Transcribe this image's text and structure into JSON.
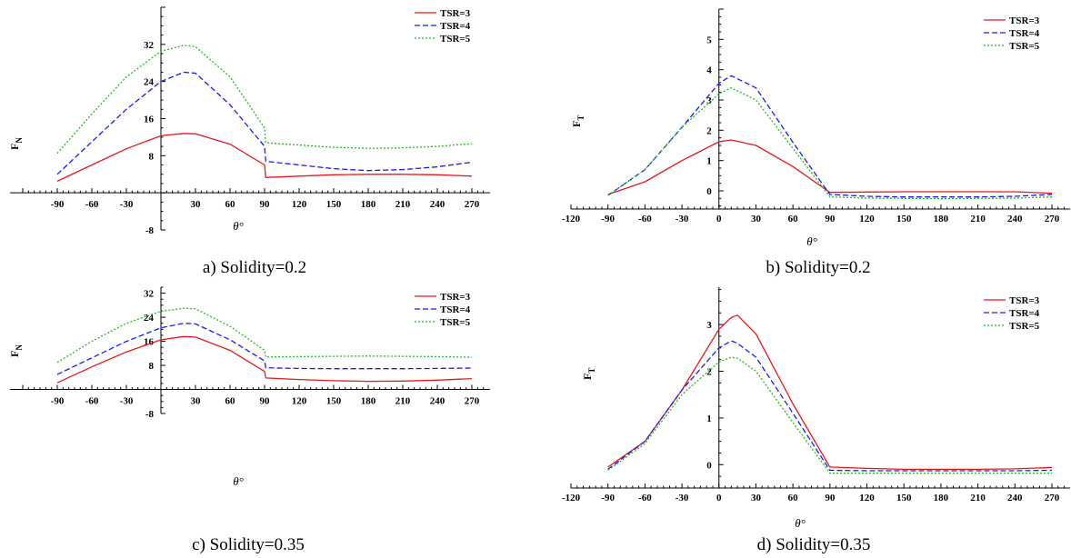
{
  "chart_data": [
    {
      "type": "line",
      "caption": "a) Solidity=0.2",
      "xlabel": "θ°",
      "ylabel": "F",
      "ylabel_sub": "N",
      "xlim": [
        -90,
        270
      ],
      "ylim": [
        -8,
        40
      ],
      "xticks": [
        "-90",
        "-60",
        "-30",
        "30",
        "60",
        "90",
        "120",
        "150",
        "180",
        "210",
        "240",
        "270"
      ],
      "yticks": [
        "-8",
        "8",
        "16",
        "24",
        "32"
      ],
      "legend_position": "top-right",
      "grid": false,
      "series": [
        {
          "name": "TSR=3",
          "color": "#e31a1c",
          "dash": "solid",
          "x": [
            -90,
            -60,
            -30,
            0,
            20,
            30,
            60,
            90,
            91,
            120,
            150,
            180,
            210,
            240,
            270
          ],
          "y": [
            2.5,
            6,
            9.5,
            12.3,
            12.8,
            12.7,
            10.5,
            6,
            3.3,
            3.6,
            3.9,
            4.0,
            4.0,
            3.9,
            3.6
          ]
        },
        {
          "name": "TSR=4",
          "color": "#1a1aff",
          "dash": "dashed",
          "x": [
            -90,
            -60,
            -30,
            0,
            20,
            30,
            60,
            90,
            91,
            120,
            150,
            180,
            210,
            240,
            270
          ],
          "y": [
            4,
            11,
            18,
            24,
            26,
            25.8,
            19,
            10,
            6.8,
            6.0,
            5.2,
            4.8,
            5.0,
            5.6,
            6.6
          ]
        },
        {
          "name": "TSR=5",
          "color": "#22bb22",
          "dash": "dotted",
          "x": [
            -90,
            -60,
            -30,
            0,
            20,
            30,
            60,
            90,
            91,
            120,
            150,
            180,
            210,
            240,
            270
          ],
          "y": [
            8.5,
            17,
            25,
            30.5,
            31.8,
            31.5,
            25,
            14,
            10.8,
            10.3,
            9.8,
            9.6,
            9.7,
            10.0,
            10.6
          ]
        }
      ]
    },
    {
      "type": "line",
      "caption": "b) Solidity=0.2",
      "xlabel": "θ°",
      "ylabel": "F",
      "ylabel_sub": "T",
      "xlim": [
        -120,
        270
      ],
      "ylim": [
        -0.6,
        6
      ],
      "xticks": [
        "-120",
        "-90",
        "-60",
        "-30",
        "0",
        "30",
        "60",
        "90",
        "120",
        "150",
        "180",
        "210",
        "240",
        "270"
      ],
      "yticks": [
        "0",
        "1",
        "2",
        "3",
        "4",
        "5"
      ],
      "legend_position": "top-right",
      "grid": false,
      "series": [
        {
          "name": "TSR=3",
          "color": "#e31a1c",
          "dash": "solid",
          "x": [
            -90,
            -60,
            -30,
            0,
            10,
            30,
            60,
            90,
            120,
            150,
            180,
            210,
            240,
            270
          ],
          "y": [
            -0.12,
            0.3,
            1.0,
            1.62,
            1.68,
            1.5,
            0.8,
            -0.05,
            -0.04,
            -0.03,
            -0.03,
            -0.03,
            -0.03,
            -0.08
          ]
        },
        {
          "name": "TSR=4",
          "color": "#1a1aff",
          "dash": "dashed",
          "x": [
            -90,
            -60,
            -30,
            0,
            10,
            30,
            60,
            90,
            120,
            150,
            180,
            210,
            240,
            270
          ],
          "y": [
            -0.15,
            0.7,
            2.1,
            3.55,
            3.8,
            3.4,
            1.6,
            -0.12,
            -0.18,
            -0.2,
            -0.2,
            -0.2,
            -0.18,
            -0.12
          ]
        },
        {
          "name": "TSR=5",
          "color": "#22bb22",
          "dash": "dotted",
          "x": [
            -90,
            -60,
            -30,
            0,
            10,
            30,
            60,
            90,
            120,
            150,
            180,
            210,
            240,
            270
          ],
          "y": [
            -0.15,
            0.7,
            2.1,
            3.2,
            3.4,
            3.0,
            1.4,
            -0.2,
            -0.24,
            -0.25,
            -0.26,
            -0.25,
            -0.24,
            -0.2
          ]
        }
      ]
    },
    {
      "type": "line",
      "caption": "c) Solidity=0.35",
      "xlabel": "θ°",
      "ylabel": "F",
      "ylabel_sub": "N",
      "xlim": [
        -90,
        270
      ],
      "ylim": [
        -8,
        34
      ],
      "xticks": [
        "-90",
        "-60",
        "-30",
        "30",
        "60",
        "90",
        "120",
        "150",
        "180",
        "210",
        "240",
        "270"
      ],
      "yticks": [
        "-8",
        "8",
        "16",
        "24",
        "32"
      ],
      "legend_position": "top-right",
      "grid": false,
      "series": [
        {
          "name": "TSR=3",
          "color": "#e31a1c",
          "dash": "solid",
          "x": [
            -90,
            -60,
            -30,
            0,
            20,
            30,
            60,
            90,
            91,
            120,
            150,
            180,
            210,
            240,
            270
          ],
          "y": [
            2.2,
            7.5,
            12.5,
            16.5,
            17.6,
            17.4,
            13,
            6,
            3.8,
            3.3,
            2.9,
            2.7,
            2.8,
            3.1,
            3.6
          ]
        },
        {
          "name": "TSR=4",
          "color": "#1a1aff",
          "dash": "dashed",
          "x": [
            -90,
            -60,
            -30,
            0,
            20,
            30,
            60,
            90,
            91,
            120,
            150,
            180,
            210,
            240,
            270
          ],
          "y": [
            5,
            10.5,
            16,
            20.5,
            22,
            21.8,
            16.5,
            9.5,
            7.2,
            7.0,
            6.9,
            6.9,
            6.9,
            7.0,
            7.1
          ]
        },
        {
          "name": "TSR=5",
          "color": "#22bb22",
          "dash": "dotted",
          "x": [
            -90,
            -60,
            -30,
            0,
            20,
            30,
            60,
            90,
            91,
            120,
            150,
            180,
            210,
            240,
            270
          ],
          "y": [
            9,
            16,
            22,
            26,
            27,
            26.8,
            21,
            13,
            10.8,
            10.9,
            11.0,
            11.1,
            11.0,
            10.9,
            10.7
          ]
        }
      ]
    },
    {
      "type": "line",
      "caption": "d) Solidity=0.35",
      "xlabel": "θ°",
      "ylabel": "F",
      "ylabel_sub": "T",
      "xlim": [
        -120,
        270
      ],
      "ylim": [
        -0.5,
        3.8
      ],
      "xticks": [
        "-120",
        "-90",
        "-60",
        "-30",
        "0",
        "30",
        "60",
        "90",
        "120",
        "150",
        "180",
        "210",
        "240",
        "270"
      ],
      "yticks": [
        "0",
        "1",
        "2",
        "3"
      ],
      "legend_position": "top-right",
      "grid": false,
      "series": [
        {
          "name": "TSR=3",
          "color": "#e31a1c",
          "dash": "solid",
          "x": [
            -90,
            -60,
            -30,
            0,
            10,
            15,
            30,
            60,
            90,
            120,
            150,
            180,
            210,
            240,
            270
          ],
          "y": [
            -0.05,
            0.5,
            1.6,
            2.9,
            3.15,
            3.2,
            2.8,
            1.3,
            -0.05,
            -0.08,
            -0.1,
            -0.1,
            -0.1,
            -0.09,
            -0.06
          ]
        },
        {
          "name": "TSR=4",
          "color": "#1a1aff",
          "dash": "dashed",
          "x": [
            -90,
            -60,
            -30,
            0,
            10,
            15,
            30,
            60,
            90,
            120,
            150,
            180,
            210,
            240,
            270
          ],
          "y": [
            -0.1,
            0.5,
            1.6,
            2.5,
            2.65,
            2.6,
            2.3,
            1.1,
            -0.12,
            -0.13,
            -0.13,
            -0.13,
            -0.13,
            -0.13,
            -0.12
          ]
        },
        {
          "name": "TSR=5",
          "color": "#22bb22",
          "dash": "dotted",
          "x": [
            -90,
            -60,
            -30,
            0,
            10,
            15,
            30,
            60,
            90,
            120,
            150,
            180,
            210,
            240,
            270
          ],
          "y": [
            -0.12,
            0.45,
            1.5,
            2.2,
            2.3,
            2.28,
            2.0,
            0.9,
            -0.18,
            -0.18,
            -0.18,
            -0.18,
            -0.18,
            -0.18,
            -0.18
          ]
        }
      ]
    }
  ]
}
